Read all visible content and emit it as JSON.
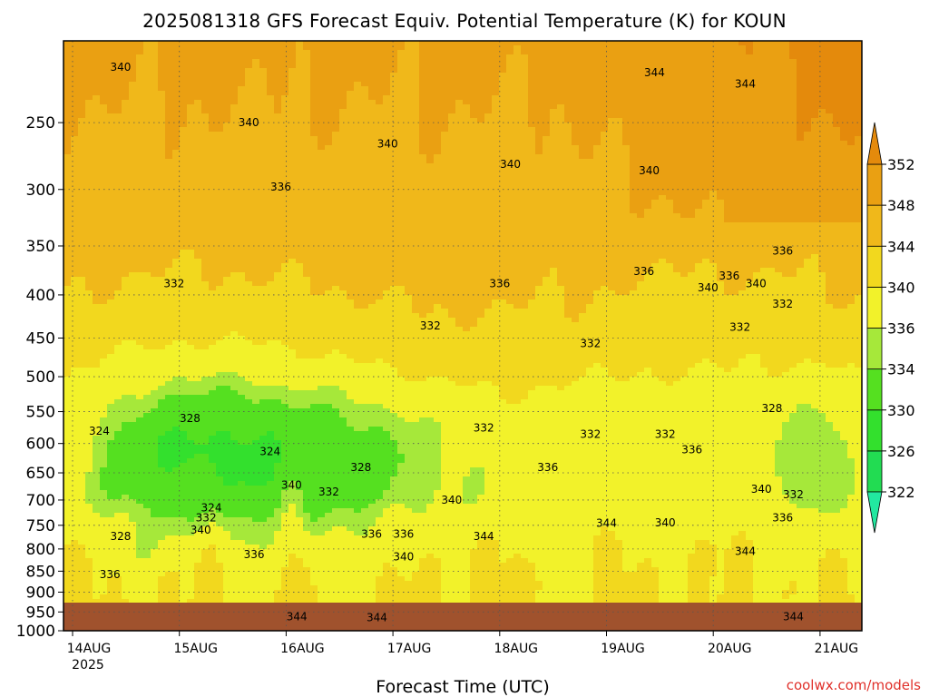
{
  "chart_data": {
    "type": "heatmap",
    "title": "2025081318 GFS Forecast Equiv. Potential Temperature (K) for KOUN",
    "xlabel": "Forecast Time (UTC)",
    "ylabel": "",
    "y_axis": {
      "scale": "log",
      "inverted": true,
      "ylim": [
        1000,
        200
      ],
      "ticks": [
        250,
        300,
        350,
        400,
        450,
        500,
        550,
        600,
        650,
        700,
        750,
        800,
        850,
        900,
        950,
        1000
      ]
    },
    "x_axis": {
      "ticks": [
        "14AUG",
        "15AUG",
        "16AUG",
        "17AUG",
        "18AUG",
        "19AUG",
        "20AUG",
        "21AUG"
      ],
      "year_label": "2025",
      "grid": "dotted"
    },
    "colorbar": {
      "levels": [
        322,
        326,
        330,
        334,
        336,
        340,
        344,
        348,
        352
      ],
      "colors": [
        "#22e8a0",
        "#22dc52",
        "#33e02d",
        "#55e020",
        "#a6e83a",
        "#f2f22a",
        "#f2d81e",
        "#f0b81a",
        "#eaa012",
        "#e48a0c"
      ],
      "extend": "both"
    },
    "contour_labels": [
      {
        "t": 0.45,
        "p": 215,
        "v": "340"
      },
      {
        "t": 1.65,
        "p": 250,
        "v": "340"
      },
      {
        "t": 2.95,
        "p": 265,
        "v": "340"
      },
      {
        "t": 4.1,
        "p": 280,
        "v": "340"
      },
      {
        "t": 5.4,
        "p": 285,
        "v": "340"
      },
      {
        "t": 5.45,
        "p": 218,
        "v": "344"
      },
      {
        "t": 6.3,
        "p": 225,
        "v": "344"
      },
      {
        "t": 1.95,
        "p": 298,
        "v": "336"
      },
      {
        "t": 0.95,
        "p": 388,
        "v": "332"
      },
      {
        "t": 3.35,
        "p": 435,
        "v": "332"
      },
      {
        "t": 4.0,
        "p": 388,
        "v": "336"
      },
      {
        "t": 5.35,
        "p": 375,
        "v": "336"
      },
      {
        "t": 6.15,
        "p": 380,
        "v": "336"
      },
      {
        "t": 6.65,
        "p": 355,
        "v": "336"
      },
      {
        "t": 5.95,
        "p": 392,
        "v": "340"
      },
      {
        "t": 6.4,
        "p": 388,
        "v": "340"
      },
      {
        "t": 6.65,
        "p": 410,
        "v": "332"
      },
      {
        "t": 6.25,
        "p": 437,
        "v": "332"
      },
      {
        "t": 4.85,
        "p": 457,
        "v": "332"
      },
      {
        "t": 0.25,
        "p": 580,
        "v": "324"
      },
      {
        "t": 1.1,
        "p": 560,
        "v": "328"
      },
      {
        "t": 1.85,
        "p": 613,
        "v": "324"
      },
      {
        "t": 3.85,
        "p": 575,
        "v": "332"
      },
      {
        "t": 4.85,
        "p": 585,
        "v": "332"
      },
      {
        "t": 5.55,
        "p": 585,
        "v": "332"
      },
      {
        "t": 5.8,
        "p": 610,
        "v": "336"
      },
      {
        "t": 6.55,
        "p": 545,
        "v": "328"
      },
      {
        "t": 2.7,
        "p": 640,
        "v": "328"
      },
      {
        "t": 4.45,
        "p": 640,
        "v": "336"
      },
      {
        "t": 2.05,
        "p": 672,
        "v": "340"
      },
      {
        "t": 2.4,
        "p": 685,
        "v": "332"
      },
      {
        "t": 1.3,
        "p": 715,
        "v": "324"
      },
      {
        "t": 1.25,
        "p": 735,
        "v": "332"
      },
      {
        "t": 1.2,
        "p": 760,
        "v": "340"
      },
      {
        "t": 0.45,
        "p": 773,
        "v": "328"
      },
      {
        "t": 3.55,
        "p": 700,
        "v": "340"
      },
      {
        "t": 2.8,
        "p": 768,
        "v": "336"
      },
      {
        "t": 3.1,
        "p": 768,
        "v": "336"
      },
      {
        "t": 3.1,
        "p": 817,
        "v": "340"
      },
      {
        "t": 1.7,
        "p": 812,
        "v": "336"
      },
      {
        "t": 0.35,
        "p": 858,
        "v": "336"
      },
      {
        "t": 3.85,
        "p": 773,
        "v": "344"
      },
      {
        "t": 5.0,
        "p": 746,
        "v": "344"
      },
      {
        "t": 5.55,
        "p": 745,
        "v": "340"
      },
      {
        "t": 6.45,
        "p": 680,
        "v": "340"
      },
      {
        "t": 6.75,
        "p": 690,
        "v": "332"
      },
      {
        "t": 6.65,
        "p": 735,
        "v": "336"
      },
      {
        "t": 6.3,
        "p": 805,
        "v": "344"
      },
      {
        "t": 2.1,
        "p": 962,
        "v": "344"
      },
      {
        "t": 2.85,
        "p": 965,
        "v": "344"
      },
      {
        "t": 6.75,
        "p": 962,
        "v": "344"
      }
    ]
  },
  "credit": "coolwx.com/models"
}
